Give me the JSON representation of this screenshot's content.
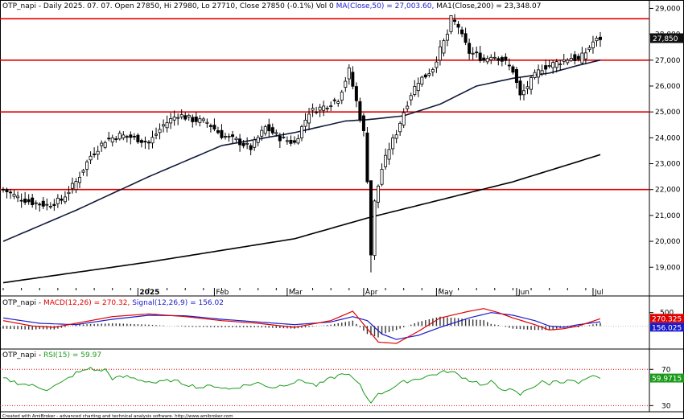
{
  "price_panel": {
    "ticker": "OTP_napi",
    "title_text": " - Daily 2025. 07. 07. Open 27850, Hi 27980, Lo 27710, Close 27850 (-0.1%) Vol 0 ",
    "ma50_text": "MA(Close,50) = 27,003.60,",
    "ma200_text": " MA1(Close,200) = 23,348.07",
    "last_price_tag": "27,850"
  },
  "macd_panel": {
    "ticker": "OTP_napi",
    "sep": " - ",
    "macd_text": "MACD(12,26) = 270.32,",
    "signal_text": " Signal(12,26,9) = 156.02",
    "macd_tag": "270.325",
    "signal_tag": "156.025",
    "axis_label": "500"
  },
  "rsi_panel": {
    "ticker": "OTP_napi",
    "sep": " - ",
    "rsi_text": "RSI(15) = 59.97",
    "rsi_tag": "59.9715",
    "axis_labels": [
      "70",
      "30"
    ]
  },
  "footer": "Created with AmiBroker - advanced charting and technical analysis software. http://www.amibroker.com",
  "colors": {
    "candle": "#000000",
    "ma50": "#101a3a",
    "ma200": "#000000",
    "support_lines": "#e00000",
    "macd": "#e00000",
    "signal": "#1a1acc",
    "rsi": "#1a9a1a",
    "price_tag_bg": "#111111",
    "macd_tag_bg": "#e00000",
    "signal_tag_bg": "#1a1acc",
    "rsi_tag_bg": "#1a9a1a"
  },
  "chart_data": [
    {
      "type": "candlestick",
      "title": "OTP_napi - Daily 2025. 07. 07. Open 27850, Hi 27980, Lo 27710, Close 27850 (-0.1%) Vol 0",
      "y_ticks": [
        "29,000",
        "28,000",
        "27,000",
        "26,000",
        "25,000",
        "24,000",
        "23,000",
        "22,000",
        "21,000",
        "20,000",
        "19,000"
      ],
      "ylim": [
        18200,
        29200
      ],
      "x_ticks": [
        {
          "label": "2025",
          "index": 37
        },
        {
          "label": "Feb",
          "index": 58
        },
        {
          "label": "Mar",
          "index": 78
        },
        {
          "label": "Apr",
          "index": 99
        },
        {
          "label": "May",
          "index": 119
        },
        {
          "label": "Jun",
          "index": 141
        },
        {
          "label": "Jul",
          "index": 162
        }
      ],
      "horizontal_lines": [
        28600,
        27000,
        25000,
        22000
      ],
      "dotted_lines": [
        27000
      ],
      "close_anchors": [
        [
          0,
          22000
        ],
        [
          4,
          21700
        ],
        [
          8,
          21500
        ],
        [
          12,
          21400
        ],
        [
          16,
          21600
        ],
        [
          20,
          22300
        ],
        [
          24,
          23300
        ],
        [
          28,
          23900
        ],
        [
          32,
          24100
        ],
        [
          36,
          24000
        ],
        [
          40,
          23800
        ],
        [
          44,
          24500
        ],
        [
          48,
          24900
        ],
        [
          52,
          24700
        ],
        [
          56,
          24600
        ],
        [
          60,
          24100
        ],
        [
          64,
          23900
        ],
        [
          68,
          23600
        ],
        [
          72,
          24400
        ],
        [
          76,
          24000
        ],
        [
          80,
          23800
        ],
        [
          84,
          25000
        ],
        [
          88,
          25200
        ],
        [
          92,
          25500
        ],
        [
          95,
          26600
        ],
        [
          97,
          25400
        ],
        [
          99,
          24200
        ],
        [
          100,
          22400
        ],
        [
          101,
          19500
        ],
        [
          102,
          21500
        ],
        [
          104,
          22800
        ],
        [
          106,
          23600
        ],
        [
          108,
          24200
        ],
        [
          110,
          25000
        ],
        [
          112,
          25700
        ],
        [
          114,
          26200
        ],
        [
          116,
          26400
        ],
        [
          118,
          26700
        ],
        [
          120,
          27400
        ],
        [
          122,
          28000
        ],
        [
          123,
          28600
        ],
        [
          125,
          28300
        ],
        [
          126,
          27900
        ],
        [
          128,
          27300
        ],
        [
          130,
          27200
        ],
        [
          132,
          27000
        ],
        [
          134,
          27200
        ],
        [
          136,
          27100
        ],
        [
          138,
          26900
        ],
        [
          140,
          26600
        ],
        [
          142,
          25600
        ],
        [
          144,
          26000
        ],
        [
          146,
          26400
        ],
        [
          148,
          26700
        ],
        [
          150,
          26800
        ],
        [
          152,
          26900
        ],
        [
          154,
          27000
        ],
        [
          156,
          27100
        ],
        [
          158,
          27000
        ],
        [
          160,
          27300
        ],
        [
          162,
          27700
        ],
        [
          164,
          27850
        ]
      ],
      "ma50_anchors": [
        [
          0,
          20000
        ],
        [
          20,
          21200
        ],
        [
          40,
          22500
        ],
        [
          60,
          23700
        ],
        [
          80,
          24200
        ],
        [
          94,
          24650
        ],
        [
          100,
          24700
        ],
        [
          110,
          24850
        ],
        [
          120,
          25300
        ],
        [
          130,
          26000
        ],
        [
          140,
          26300
        ],
        [
          150,
          26500
        ],
        [
          158,
          26800
        ],
        [
          164,
          27003.6
        ]
      ],
      "ma200_anchors": [
        [
          0,
          18400
        ],
        [
          40,
          19200
        ],
        [
          80,
          20100
        ],
        [
          100,
          20900
        ],
        [
          120,
          21600
        ],
        [
          140,
          22300
        ],
        [
          164,
          23348.07
        ]
      ]
    },
    {
      "type": "line",
      "title": "OTP_napi - MACD(12,26) = 270.32, Signal(12,26,9) = 156.02",
      "ylim": [
        -800,
        700
      ],
      "y_ticks": [
        "500"
      ],
      "series": [
        {
          "name": "MACD(12,26)",
          "anchors": [
            [
              0,
              200
            ],
            [
              8,
              0
            ],
            [
              14,
              -50
            ],
            [
              20,
              100
            ],
            [
              30,
              350
            ],
            [
              40,
              450
            ],
            [
              50,
              350
            ],
            [
              60,
              200
            ],
            [
              70,
              100
            ],
            [
              80,
              -50
            ],
            [
              90,
              200
            ],
            [
              96,
              550
            ],
            [
              100,
              -100
            ],
            [
              103,
              -600
            ],
            [
              108,
              -650
            ],
            [
              114,
              -200
            ],
            [
              120,
              300
            ],
            [
              128,
              550
            ],
            [
              132,
              650
            ],
            [
              136,
              500
            ],
            [
              140,
              300
            ],
            [
              146,
              50
            ],
            [
              150,
              -150
            ],
            [
              154,
              -100
            ],
            [
              158,
              0
            ],
            [
              164,
              270.32
            ]
          ]
        },
        {
          "name": "Signal(12,26,9)",
          "anchors": [
            [
              0,
              300
            ],
            [
              10,
              100
            ],
            [
              20,
              50
            ],
            [
              30,
              250
            ],
            [
              40,
              400
            ],
            [
              50,
              380
            ],
            [
              60,
              250
            ],
            [
              70,
              150
            ],
            [
              80,
              50
            ],
            [
              90,
              150
            ],
            [
              96,
              350
            ],
            [
              100,
              200
            ],
            [
              104,
              -300
            ],
            [
              108,
              -500
            ],
            [
              114,
              -350
            ],
            [
              120,
              -50
            ],
            [
              128,
              300
            ],
            [
              134,
              500
            ],
            [
              140,
              400
            ],
            [
              146,
              200
            ],
            [
              150,
              0
            ],
            [
              154,
              -50
            ],
            [
              158,
              50
            ],
            [
              164,
              156.02
            ]
          ]
        }
      ]
    },
    {
      "type": "line",
      "title": "OTP_napi - RSI(15) = 59.97",
      "ylim": [
        25,
        80
      ],
      "y_ticks": [
        "70",
        "30"
      ],
      "reference_levels": [
        70,
        30
      ],
      "series": [
        {
          "name": "RSI(15)",
          "anchors": [
            [
              0,
              60
            ],
            [
              4,
              55
            ],
            [
              8,
              52
            ],
            [
              12,
              48
            ],
            [
              16,
              55
            ],
            [
              20,
              66
            ],
            [
              22,
              68
            ],
            [
              24,
              72
            ],
            [
              26,
              68
            ],
            [
              28,
              70
            ],
            [
              30,
              60
            ],
            [
              34,
              62
            ],
            [
              38,
              58
            ],
            [
              42,
              55
            ],
            [
              46,
              58
            ],
            [
              50,
              54
            ],
            [
              54,
              50
            ],
            [
              58,
              52
            ],
            [
              62,
              48
            ],
            [
              66,
              52
            ],
            [
              70,
              55
            ],
            [
              74,
              50
            ],
            [
              78,
              54
            ],
            [
              82,
              58
            ],
            [
              86,
              52
            ],
            [
              90,
              60
            ],
            [
              94,
              66
            ],
            [
              96,
              60
            ],
            [
              98,
              52
            ],
            [
              100,
              38
            ],
            [
              101,
              34
            ],
            [
              102,
              40
            ],
            [
              104,
              44
            ],
            [
              106,
              48
            ],
            [
              108,
              52
            ],
            [
              110,
              56
            ],
            [
              114,
              60
            ],
            [
              118,
              64
            ],
            [
              122,
              68
            ],
            [
              124,
              66
            ],
            [
              126,
              62
            ],
            [
              128,
              58
            ],
            [
              130,
              56
            ],
            [
              132,
              52
            ],
            [
              134,
              56
            ],
            [
              136,
              50
            ],
            [
              138,
              48
            ],
            [
              140,
              46
            ],
            [
              142,
              42
            ],
            [
              144,
              48
            ],
            [
              146,
              52
            ],
            [
              148,
              56
            ],
            [
              150,
              54
            ],
            [
              152,
              58
            ],
            [
              154,
              56
            ],
            [
              156,
              58
            ],
            [
              158,
              54
            ],
            [
              160,
              58
            ],
            [
              162,
              62
            ],
            [
              164,
              59.97
            ]
          ]
        }
      ]
    }
  ]
}
